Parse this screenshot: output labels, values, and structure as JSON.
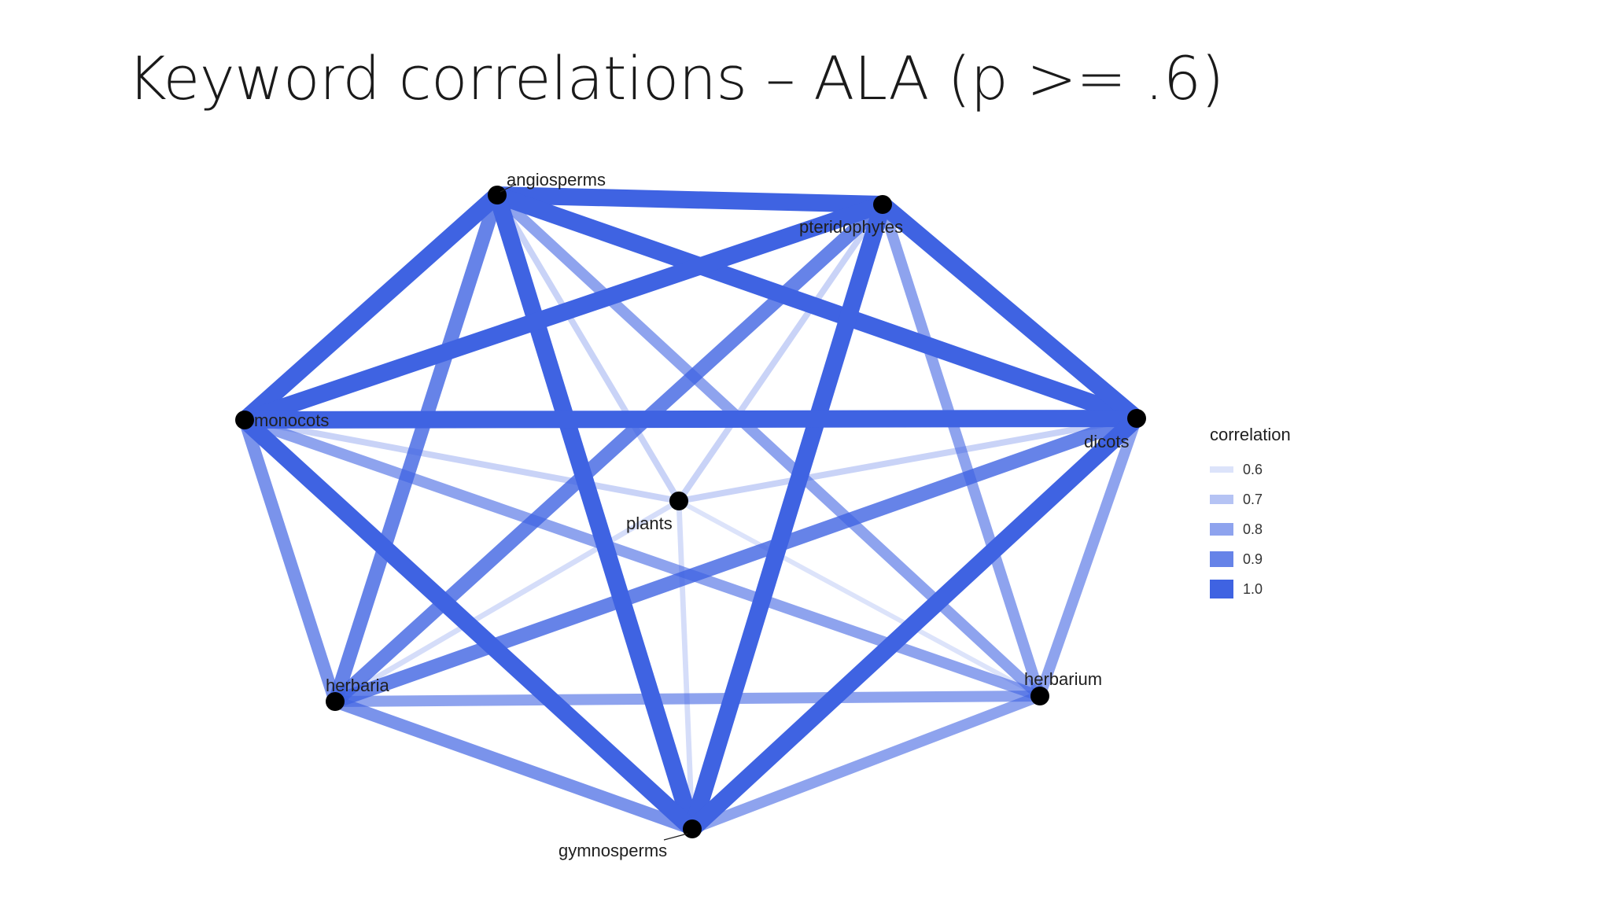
{
  "slide": {
    "title": "Keyword correlations – ALA (p >= .6)"
  },
  "colors": {
    "edge": "#3f63e2",
    "node": "#000000",
    "background": "#ffffff"
  },
  "chart_data": {
    "type": "network",
    "nodes": [
      {
        "id": "angiosperms",
        "label": "angiosperms"
      },
      {
        "id": "pteridophytes",
        "label": "pteridophytes"
      },
      {
        "id": "monocots",
        "label": "monocots"
      },
      {
        "id": "dicots",
        "label": "dicots"
      },
      {
        "id": "plants",
        "label": "plants"
      },
      {
        "id": "herbaria",
        "label": "herbaria"
      },
      {
        "id": "herbarium",
        "label": "herbarium"
      },
      {
        "id": "gymnosperms",
        "label": "gymnosperms"
      }
    ],
    "edges": [
      {
        "source": "angiosperms",
        "target": "pteridophytes",
        "correlation": 1.0
      },
      {
        "source": "angiosperms",
        "target": "monocots",
        "correlation": 1.0
      },
      {
        "source": "angiosperms",
        "target": "dicots",
        "correlation": 1.0
      },
      {
        "source": "angiosperms",
        "target": "gymnosperms",
        "correlation": 1.0
      },
      {
        "source": "angiosperms",
        "target": "herbaria",
        "correlation": 0.9
      },
      {
        "source": "angiosperms",
        "target": "herbarium",
        "correlation": 0.8
      },
      {
        "source": "angiosperms",
        "target": "plants",
        "correlation": 0.65
      },
      {
        "source": "pteridophytes",
        "target": "monocots",
        "correlation": 1.0
      },
      {
        "source": "pteridophytes",
        "target": "dicots",
        "correlation": 1.0
      },
      {
        "source": "pteridophytes",
        "target": "gymnosperms",
        "correlation": 1.0
      },
      {
        "source": "pteridophytes",
        "target": "herbaria",
        "correlation": 0.9
      },
      {
        "source": "pteridophytes",
        "target": "herbarium",
        "correlation": 0.8
      },
      {
        "source": "pteridophytes",
        "target": "plants",
        "correlation": 0.65
      },
      {
        "source": "monocots",
        "target": "dicots",
        "correlation": 1.0
      },
      {
        "source": "monocots",
        "target": "gymnosperms",
        "correlation": 1.0
      },
      {
        "source": "monocots",
        "target": "herbaria",
        "correlation": 0.85
      },
      {
        "source": "monocots",
        "target": "herbarium",
        "correlation": 0.8
      },
      {
        "source": "monocots",
        "target": "plants",
        "correlation": 0.65
      },
      {
        "source": "dicots",
        "target": "gymnosperms",
        "correlation": 1.0
      },
      {
        "source": "dicots",
        "target": "herbaria",
        "correlation": 0.9
      },
      {
        "source": "dicots",
        "target": "herbarium",
        "correlation": 0.8
      },
      {
        "source": "dicots",
        "target": "plants",
        "correlation": 0.65
      },
      {
        "source": "herbaria",
        "target": "herbarium",
        "correlation": 0.8
      },
      {
        "source": "herbaria",
        "target": "gymnosperms",
        "correlation": 0.85
      },
      {
        "source": "herbaria",
        "target": "plants",
        "correlation": 0.62
      },
      {
        "source": "herbarium",
        "target": "gymnosperms",
        "correlation": 0.8
      },
      {
        "source": "herbarium",
        "target": "plants",
        "correlation": 0.6
      },
      {
        "source": "gymnosperms",
        "target": "plants",
        "correlation": 0.62
      }
    ],
    "legend": {
      "title": "correlation",
      "position": "right",
      "items": [
        {
          "label": "0.6",
          "value": 0.6
        },
        {
          "label": "0.7",
          "value": 0.7
        },
        {
          "label": "0.8",
          "value": 0.8
        },
        {
          "label": "0.9",
          "value": 0.9
        },
        {
          "label": "1.0",
          "value": 1.0
        }
      ]
    }
  }
}
